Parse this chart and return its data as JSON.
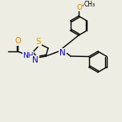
{
  "bg_color": "#eeede3",
  "bond_color": "#000000",
  "atom_colors": {
    "O": "#e08000",
    "N": "#0000cc",
    "S": "#ccaa00",
    "C": "#000000"
  },
  "font_size": 6.5,
  "fig_size": [
    1.52,
    1.52
  ],
  "dpi": 100,
  "lw": 1.0
}
